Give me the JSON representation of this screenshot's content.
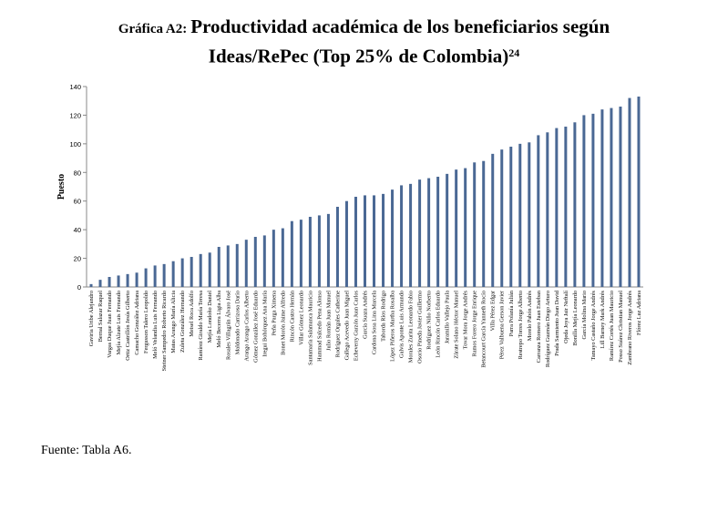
{
  "title": {
    "prefix": "Gráfica A2:",
    "line1": "Productividad académica de los beneficiarios según",
    "line2": "Ideas/RePec (Top 25% de Colombia)",
    "footnote": "24"
  },
  "source": "Fuente: Tabla A6.",
  "chart_data": {
    "type": "bar",
    "ylabel": "Puesto",
    "xlabel": "",
    "ylim": [
      0,
      140
    ],
    "yticks": [
      0,
      20,
      40,
      60,
      80,
      100,
      120,
      140
    ],
    "grid": false,
    "bar_color": "#4a6894",
    "categories": [
      "Gaviria Uribe Alejandro",
      "Bernal Salazar Raquel",
      "Vargas Duque Juan Fernando",
      "Mejía Alzate Luis Fernando",
      "Ortiz Castrillón Jesús Gilberto",
      "Camacho González Adriana",
      "Fergusson Talero Leopoldo",
      "Meló Velandia Luis Fernando",
      "Steiner Sampedro Roberto Ricardo",
      "Matas Arango María Alicia",
      "Zuleta González Hernando",
      "Meisel Roca Adolfo",
      "Ramírez Giraldo María Teresa",
      "Mejía Londoño Daniel",
      "Meló Becerra Ligia Alba",
      "Rosales Villagrán Álvaro José",
      "Maldonado Carrizosa Darío",
      "Arango Arango Carlos Alberto",
      "Gómez González José Eduardo",
      "Iregui Bohórquez Ana María",
      "Peña Parga Ximena",
      "Bonet Morón Jaime Alfredo",
      "Rincón Castro Hernán",
      "Villar Gómez Leonardo",
      "Santamaría Salamanca Mauricio",
      "Hammad Salcedo Pena Alonso",
      "Julio Román Juan Manuel",
      "Rodríguez Orgales Catherine",
      "Gallego Acevedo Juan Miguel",
      "Echeverry Garzón Juan Carlos",
      "García Suaza Andrés",
      "Cardona Sosa Lina Marcela",
      "Taborda Ríos Rodrigo",
      "López Piñeros Martha Rosalba",
      "Galvis Aponte Luis Armando",
      "Morales Zurita Leonardo Fabio",
      "Osorio Pineda Javier Guillermo",
      "Rodríguez Niño Norberto",
      "León Rincón Carlos Eduardo",
      "Jaramillo Vallejo Paula",
      "Zárate Solano Héctor Manuel",
      "Tovar Mora Jorge Andrés",
      "Ramos Forero Jorge Enrique",
      "Betancourt García Yanneth Rocío",
      "Villa Pérez Edgar",
      "Pérez Valbuena Gerson Javier",
      "Parra Polanía Julián",
      "Restrepo Torres Jorge Alberto",
      "Morelo Pabón Andrés",
      "Carranza Romero Juan Esteban",
      "Rodríguez Guzmán Diego Arturo",
      "Prada Sarmiento Juan David",
      "Ojeda Joya Jair Neftalí",
      "Bonilla Mejía Leonardo",
      "García Molina Mario",
      "Tamayo Castaño Jorge Andrés",
      "Lill Barney Mark Andrés",
      "Ramírez Cortés Juan Mauricio",
      "Posso Suárez Christian Manuel",
      "Zambrano Riveros Jorge Andrés",
      "Flórez Luz Adriana"
    ],
    "values": [
      2,
      5,
      7,
      8,
      9,
      10,
      13,
      15,
      16,
      18,
      20,
      21,
      23,
      24,
      28,
      29,
      30,
      33,
      35,
      36,
      40,
      41,
      46,
      47,
      49,
      50,
      51,
      56,
      60,
      63,
      64,
      64,
      65,
      68,
      71,
      72,
      75,
      76,
      77,
      79,
      82,
      83,
      87,
      88,
      93,
      96,
      98,
      100,
      101,
      106,
      108,
      111,
      112,
      115,
      120,
      121,
      124,
      125,
      126,
      132,
      133
    ]
  }
}
